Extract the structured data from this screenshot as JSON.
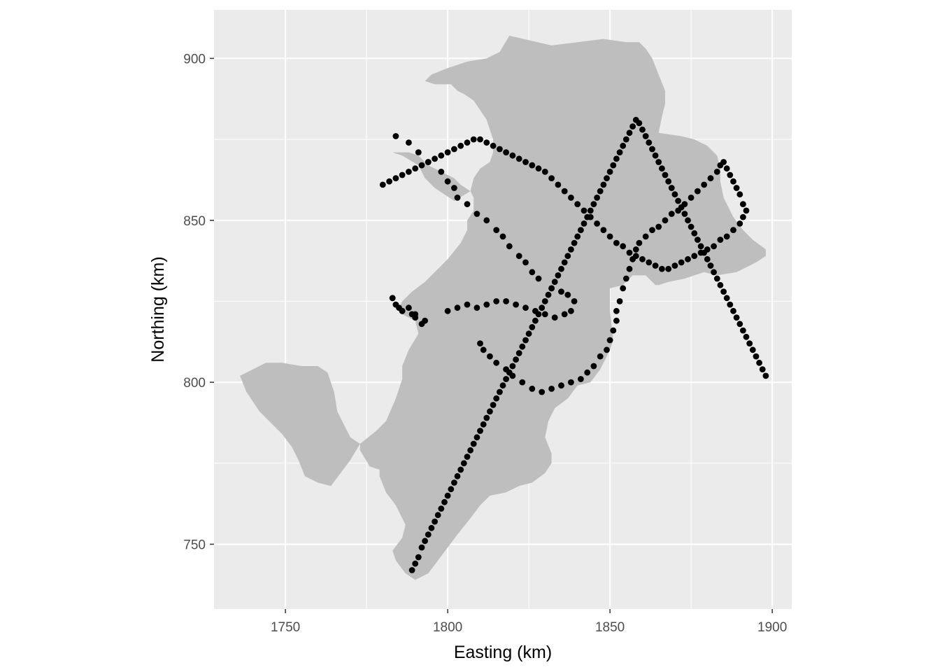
{
  "chart_data": {
    "type": "scatter",
    "xlabel": "Easting (km)",
    "ylabel": "Northing (km)",
    "xlim": [
      1728,
      1906
    ],
    "ylim": [
      730,
      915
    ],
    "x_ticks": [
      1750,
      1800,
      1850,
      1900
    ],
    "y_ticks": [
      750,
      800,
      850,
      900
    ],
    "x_minor": [
      1775,
      1825,
      1875
    ],
    "y_minor": [
      775,
      825,
      875
    ],
    "grid": true,
    "colors": {
      "panel": "#ebebeb",
      "grid": "#ffffff",
      "region": "#bebebe",
      "points": "#000000"
    },
    "region_outline": [
      [
        1819,
        907
      ],
      [
        1832,
        904
      ],
      [
        1848,
        906
      ],
      [
        1855,
        905
      ],
      [
        1859,
        905
      ],
      [
        1861,
        903
      ],
      [
        1863,
        900
      ],
      [
        1865,
        895
      ],
      [
        1867,
        890
      ],
      [
        1867,
        886
      ],
      [
        1866,
        882
      ],
      [
        1865,
        877
      ],
      [
        1872,
        876
      ],
      [
        1876,
        875
      ],
      [
        1880,
        873
      ],
      [
        1883,
        870
      ],
      [
        1884,
        866
      ],
      [
        1884,
        862
      ],
      [
        1885,
        857
      ],
      [
        1888,
        851
      ],
      [
        1891,
        847
      ],
      [
        1894,
        844
      ],
      [
        1898,
        841
      ],
      [
        1898,
        839
      ],
      [
        1895,
        837
      ],
      [
        1889,
        834
      ],
      [
        1883,
        833
      ],
      [
        1879,
        834
      ],
      [
        1873,
        832
      ],
      [
        1868,
        831
      ],
      [
        1865,
        830
      ],
      [
        1864,
        830
      ],
      [
        1861,
        833
      ],
      [
        1857,
        833
      ],
      [
        1854,
        830
      ],
      [
        1850,
        829
      ],
      [
        1850,
        822
      ],
      [
        1851,
        813
      ],
      [
        1850,
        810
      ],
      [
        1848,
        806
      ],
      [
        1847,
        804
      ],
      [
        1844,
        800
      ],
      [
        1840,
        799
      ],
      [
        1837,
        795
      ],
      [
        1833,
        792
      ],
      [
        1831,
        788
      ],
      [
        1830,
        783
      ],
      [
        1832,
        778
      ],
      [
        1832,
        775
      ],
      [
        1830,
        772
      ],
      [
        1826,
        769
      ],
      [
        1822,
        768
      ],
      [
        1818,
        766
      ],
      [
        1813,
        765
      ],
      [
        1810,
        762
      ],
      [
        1807,
        758
      ],
      [
        1803,
        753
      ],
      [
        1800,
        749
      ],
      [
        1797,
        745
      ],
      [
        1794,
        741
      ],
      [
        1790,
        739
      ],
      [
        1787,
        741
      ],
      [
        1784,
        745
      ],
      [
        1783,
        748
      ],
      [
        1786,
        752
      ],
      [
        1787,
        756
      ],
      [
        1784,
        762
      ],
      [
        1781,
        766
      ],
      [
        1779,
        771
      ],
      [
        1779,
        773
      ],
      [
        1776,
        774
      ],
      [
        1773,
        779
      ],
      [
        1773,
        781
      ],
      [
        1770,
        783
      ],
      [
        1768,
        787
      ],
      [
        1766,
        791
      ],
      [
        1765,
        797
      ],
      [
        1763,
        803
      ],
      [
        1760,
        805
      ],
      [
        1755,
        805
      ],
      [
        1749,
        806
      ],
      [
        1744,
        806
      ],
      [
        1740,
        804
      ],
      [
        1736,
        802
      ],
      [
        1738,
        797
      ],
      [
        1742,
        791
      ],
      [
        1746,
        787
      ],
      [
        1749,
        784
      ],
      [
        1752,
        780
      ],
      [
        1754,
        776
      ],
      [
        1756,
        771
      ],
      [
        1760,
        769
      ],
      [
        1764,
        768
      ],
      [
        1767,
        772
      ],
      [
        1770,
        776
      ],
      [
        1773,
        781
      ],
      [
        1778,
        785
      ],
      [
        1781,
        788
      ],
      [
        1784,
        795
      ],
      [
        1786,
        801
      ],
      [
        1786,
        805
      ],
      [
        1788,
        810
      ],
      [
        1791,
        815
      ],
      [
        1790,
        819
      ],
      [
        1786,
        821
      ],
      [
        1785,
        823
      ],
      [
        1786,
        825
      ],
      [
        1789,
        828
      ],
      [
        1793,
        831
      ],
      [
        1796,
        834
      ],
      [
        1800,
        838
      ],
      [
        1804,
        843
      ],
      [
        1806,
        847
      ],
      [
        1806,
        850
      ],
      [
        1808,
        853
      ],
      [
        1808,
        856
      ],
      [
        1808,
        857
      ],
      [
        1807,
        859
      ],
      [
        1804,
        861
      ],
      [
        1802,
        863
      ],
      [
        1798,
        865
      ],
      [
        1794,
        867
      ],
      [
        1791,
        870
      ],
      [
        1788,
        871
      ],
      [
        1785,
        871
      ],
      [
        1783,
        871
      ],
      [
        1786,
        870
      ],
      [
        1791,
        867
      ],
      [
        1793,
        863
      ],
      [
        1796,
        860
      ],
      [
        1799,
        858
      ],
      [
        1802,
        856
      ],
      [
        1807,
        859
      ],
      [
        1808,
        863
      ],
      [
        1810,
        866
      ],
      [
        1813,
        868
      ],
      [
        1814,
        871
      ],
      [
        1814,
        875
      ],
      [
        1813,
        878
      ],
      [
        1812,
        881
      ],
      [
        1810,
        884
      ],
      [
        1808,
        887
      ],
      [
        1805,
        889
      ],
      [
        1803,
        890
      ],
      [
        1801,
        892
      ],
      [
        1796,
        892
      ],
      [
        1793,
        893
      ],
      [
        1795,
        895
      ],
      [
        1800,
        897
      ],
      [
        1806,
        899
      ],
      [
        1812,
        900
      ],
      [
        1816,
        902
      ]
    ],
    "points": [
      [
        1783,
        826
      ],
      [
        1784,
        824
      ],
      [
        1785,
        823
      ],
      [
        1786,
        822
      ],
      [
        1788,
        823
      ],
      [
        1789,
        821
      ],
      [
        1790,
        820
      ],
      [
        1792,
        818
      ],
      [
        1793,
        819
      ],
      [
        1790,
        821
      ],
      [
        1786,
        822
      ],
      [
        1783,
        826
      ],
      [
        1800,
        822
      ],
      [
        1803,
        823
      ],
      [
        1806,
        824
      ],
      [
        1809,
        823
      ],
      [
        1812,
        824
      ],
      [
        1815,
        825
      ],
      [
        1818,
        825
      ],
      [
        1821,
        824
      ],
      [
        1824,
        823
      ],
      [
        1827,
        822
      ],
      [
        1830,
        821
      ],
      [
        1833,
        820
      ],
      [
        1836,
        821
      ],
      [
        1838,
        822
      ],
      [
        1839,
        825
      ],
      [
        1837,
        827
      ],
      [
        1835,
        828
      ],
      [
        1832,
        829
      ],
      [
        1828,
        832
      ],
      [
        1826,
        834
      ],
      [
        1824,
        837
      ],
      [
        1822,
        839
      ],
      [
        1819,
        842
      ],
      [
        1817,
        845
      ],
      [
        1815,
        847
      ],
      [
        1812,
        850
      ],
      [
        1809,
        852
      ],
      [
        1806,
        855
      ],
      [
        1803,
        857
      ],
      [
        1802,
        860
      ],
      [
        1800,
        862
      ],
      [
        1798,
        865
      ],
      [
        1794,
        868
      ],
      [
        1791,
        871
      ],
      [
        1788,
        874
      ],
      [
        1784,
        876
      ],
      [
        1810,
        812
      ],
      [
        1811,
        810
      ],
      [
        1813,
        808
      ],
      [
        1815,
        806
      ],
      [
        1818,
        804
      ],
      [
        1820,
        802
      ],
      [
        1823,
        800
      ],
      [
        1826,
        798
      ],
      [
        1829,
        797
      ],
      [
        1832,
        798
      ],
      [
        1835,
        799
      ],
      [
        1838,
        800
      ],
      [
        1841,
        801
      ],
      [
        1843,
        803
      ],
      [
        1845,
        805
      ],
      [
        1847,
        808
      ],
      [
        1849,
        810
      ],
      [
        1850,
        813
      ],
      [
        1851,
        816
      ],
      [
        1852,
        819
      ],
      [
        1852,
        822
      ],
      [
        1853,
        825
      ],
      [
        1854,
        829
      ],
      [
        1855,
        832
      ],
      [
        1856,
        835
      ],
      [
        1857,
        838
      ],
      [
        1858,
        841
      ],
      [
        1859,
        843
      ],
      [
        1861,
        845
      ],
      [
        1863,
        847
      ],
      [
        1865,
        848
      ],
      [
        1867,
        850
      ],
      [
        1869,
        852
      ],
      [
        1871,
        853
      ],
      [
        1873,
        855
      ],
      [
        1875,
        857
      ],
      [
        1877,
        859
      ],
      [
        1879,
        861
      ],
      [
        1881,
        863
      ],
      [
        1883,
        865
      ],
      [
        1884,
        867
      ],
      [
        1885,
        868
      ],
      [
        1886,
        866
      ],
      [
        1887,
        864
      ],
      [
        1888,
        862
      ],
      [
        1889,
        860
      ],
      [
        1890,
        858
      ],
      [
        1891,
        855
      ],
      [
        1892,
        853
      ],
      [
        1891,
        851
      ],
      [
        1890,
        849
      ],
      [
        1888,
        847
      ],
      [
        1886,
        845
      ],
      [
        1884,
        844
      ],
      [
        1882,
        842
      ],
      [
        1880,
        841
      ],
      [
        1878,
        840
      ],
      [
        1876,
        839
      ],
      [
        1874,
        838
      ],
      [
        1872,
        837
      ],
      [
        1870,
        836
      ],
      [
        1868,
        835
      ],
      [
        1866,
        835
      ],
      [
        1864,
        836
      ],
      [
        1862,
        837
      ],
      [
        1860,
        838
      ],
      [
        1858,
        839
      ],
      [
        1856,
        840
      ],
      [
        1854,
        842
      ],
      [
        1852,
        843
      ],
      [
        1850,
        845
      ],
      [
        1848,
        847
      ],
      [
        1846,
        849
      ],
      [
        1844,
        851
      ],
      [
        1842,
        853
      ],
      [
        1840,
        855
      ],
      [
        1838,
        857
      ],
      [
        1836,
        859
      ],
      [
        1834,
        861
      ],
      [
        1832,
        863
      ],
      [
        1830,
        865
      ],
      [
        1828,
        866
      ],
      [
        1826,
        867
      ],
      [
        1824,
        868
      ],
      [
        1822,
        869
      ],
      [
        1820,
        870
      ],
      [
        1818,
        871
      ],
      [
        1816,
        872
      ],
      [
        1814,
        873
      ],
      [
        1812,
        874
      ],
      [
        1810,
        875
      ],
      [
        1808,
        875
      ],
      [
        1806,
        874
      ],
      [
        1804,
        873
      ],
      [
        1802,
        872
      ],
      [
        1800,
        871
      ],
      [
        1798,
        870
      ],
      [
        1796,
        869
      ],
      [
        1794,
        868
      ],
      [
        1792,
        867
      ],
      [
        1790,
        866
      ],
      [
        1788,
        865
      ],
      [
        1786,
        864
      ],
      [
        1784,
        863
      ],
      [
        1782,
        862
      ],
      [
        1780,
        861
      ],
      [
        1789,
        742
      ],
      [
        1790,
        744
      ],
      [
        1791,
        746
      ],
      [
        1792,
        749
      ],
      [
        1793,
        751
      ],
      [
        1794,
        753
      ],
      [
        1795,
        755
      ],
      [
        1796,
        757
      ],
      [
        1797,
        759
      ],
      [
        1798,
        761
      ],
      [
        1799,
        763
      ],
      [
        1800,
        765
      ],
      [
        1801,
        767
      ],
      [
        1802,
        769
      ],
      [
        1803,
        771
      ],
      [
        1804,
        773
      ],
      [
        1805,
        775
      ],
      [
        1806,
        777
      ],
      [
        1807,
        779
      ],
      [
        1808,
        781
      ],
      [
        1809,
        783
      ],
      [
        1810,
        785
      ],
      [
        1811,
        787
      ],
      [
        1812,
        789
      ],
      [
        1813,
        791
      ],
      [
        1814,
        793
      ],
      [
        1815,
        795
      ],
      [
        1816,
        797
      ],
      [
        1817,
        799
      ],
      [
        1818,
        801
      ],
      [
        1819,
        803
      ],
      [
        1820,
        805
      ],
      [
        1821,
        807
      ],
      [
        1822,
        809
      ],
      [
        1823,
        811
      ],
      [
        1824,
        813
      ],
      [
        1825,
        815
      ],
      [
        1826,
        817
      ],
      [
        1827,
        819
      ],
      [
        1828,
        821
      ],
      [
        1829,
        823
      ],
      [
        1830,
        825
      ],
      [
        1831,
        827
      ],
      [
        1832,
        829
      ],
      [
        1833,
        831
      ],
      [
        1834,
        833
      ],
      [
        1835,
        835
      ],
      [
        1836,
        837
      ],
      [
        1837,
        839
      ],
      [
        1838,
        841
      ],
      [
        1839,
        843
      ],
      [
        1840,
        845
      ],
      [
        1841,
        847
      ],
      [
        1842,
        849
      ],
      [
        1843,
        851
      ],
      [
        1844,
        853
      ],
      [
        1845,
        855
      ],
      [
        1846,
        857
      ],
      [
        1847,
        859
      ],
      [
        1848,
        861
      ],
      [
        1849,
        863
      ],
      [
        1850,
        865
      ],
      [
        1851,
        867
      ],
      [
        1852,
        869
      ],
      [
        1853,
        871
      ],
      [
        1854,
        873
      ],
      [
        1855,
        875
      ],
      [
        1856,
        877
      ],
      [
        1857,
        879
      ],
      [
        1858,
        881
      ],
      [
        1859,
        880
      ],
      [
        1860,
        878
      ],
      [
        1861,
        876
      ],
      [
        1862,
        874
      ],
      [
        1863,
        872
      ],
      [
        1864,
        870
      ],
      [
        1865,
        868
      ],
      [
        1866,
        866
      ],
      [
        1867,
        864
      ],
      [
        1868,
        862
      ],
      [
        1869,
        860
      ],
      [
        1870,
        858
      ],
      [
        1871,
        856
      ],
      [
        1872,
        854
      ],
      [
        1873,
        852
      ],
      [
        1874,
        850
      ],
      [
        1875,
        848
      ],
      [
        1876,
        846
      ],
      [
        1877,
        844
      ],
      [
        1878,
        842
      ],
      [
        1879,
        840
      ],
      [
        1880,
        838
      ],
      [
        1881,
        836
      ],
      [
        1882,
        834
      ],
      [
        1883,
        832
      ],
      [
        1884,
        830
      ],
      [
        1885,
        828
      ],
      [
        1886,
        826
      ],
      [
        1887,
        824
      ],
      [
        1888,
        822
      ],
      [
        1889,
        820
      ],
      [
        1890,
        818
      ],
      [
        1891,
        816
      ],
      [
        1892,
        814
      ],
      [
        1893,
        812
      ],
      [
        1894,
        810
      ],
      [
        1895,
        808
      ],
      [
        1896,
        806
      ],
      [
        1897,
        804
      ],
      [
        1898,
        802
      ]
    ]
  }
}
